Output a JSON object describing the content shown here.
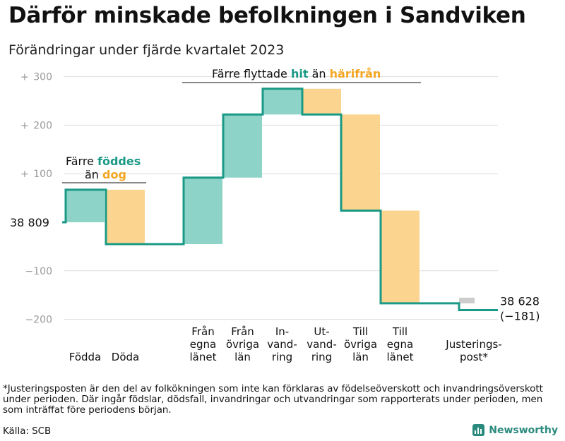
{
  "title": "Därför minskade befolkningen i Sandviken",
  "subtitle": "Förändringar under fjärde kvartalet 2023",
  "footnote": "*Justeringsposten är den del av folkökningen som inte kan förklaras av födelseöverskott och invandringsöverskott under perioden. Där ingår födslar, dödsfall, invandringar och utvandringar som rapporterats under perioden, men som inträffat före periodens början.",
  "source": "Källa: SCB",
  "brand": "Newsworthy",
  "annotations": {
    "births_deaths": {
      "line1": "Färre",
      "word1": "föddes",
      "line2": "än",
      "word2": "dog"
    },
    "migration": {
      "prefix": "Färre flyttade",
      "word1": "hit",
      "mid": "än",
      "word2": "härifrån"
    }
  },
  "colors": {
    "inflow": "#8dd3c7",
    "outflow": "#fbd58f",
    "step": "#1a9a86",
    "inflow_text": "#1a9a86",
    "outflow_text": "#f5a623",
    "adjustment": "#cccccc",
    "grid": "#dddddd"
  },
  "chart_data": {
    "type": "waterfall",
    "title": "Därför minskade befolkningen i Sandviken",
    "subtitle": "Förändringar under fjärde kvartalet 2023",
    "start_value": 38809,
    "start_label": "38  809",
    "end_value": 38628,
    "end_label": "38 628",
    "net_change_label": "(−181)",
    "ylim": [
      -200,
      300
    ],
    "yticks": [
      {
        "value": -200,
        "label": "−200",
        "plus": ""
      },
      {
        "value": -100,
        "label": "−100",
        "plus": ""
      },
      {
        "value": 100,
        "label": "100",
        "plus": "+"
      },
      {
        "value": 200,
        "label": "200",
        "plus": "+"
      },
      {
        "value": 300,
        "label": "300",
        "plus": "+"
      }
    ],
    "steps": [
      {
        "label": [
          "Födda"
        ],
        "value": 67,
        "kind": "inflow"
      },
      {
        "label": [
          "Döda"
        ],
        "value": -112,
        "kind": "outflow"
      },
      {
        "label": [
          "Från",
          "egna",
          "länet"
        ],
        "value": 137,
        "kind": "inflow"
      },
      {
        "label": [
          "Från",
          "övriga",
          "län"
        ],
        "value": 130,
        "kind": "inflow"
      },
      {
        "label": [
          "In-",
          "vand-",
          "ring"
        ],
        "value": 53,
        "kind": "inflow"
      },
      {
        "label": [
          "Ut-",
          "vand-",
          "ring"
        ],
        "value": -53,
        "kind": "outflow"
      },
      {
        "label": [
          "Till",
          "övriga",
          "län"
        ],
        "value": -198,
        "kind": "outflow"
      },
      {
        "label": [
          "Till",
          "egna",
          "länet"
        ],
        "value": -191,
        "kind": "outflow"
      },
      {
        "label": [
          "Justerings-",
          "post*"
        ],
        "value": -14,
        "kind": "adjustment"
      }
    ]
  }
}
